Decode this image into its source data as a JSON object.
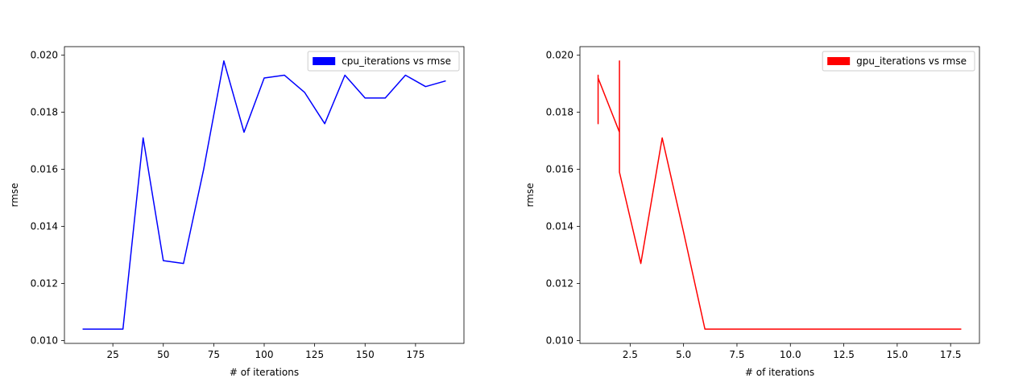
{
  "chart_data": [
    {
      "type": "line",
      "xlabel": "# of iterations",
      "ylabel": "rmse",
      "xlim": [
        1,
        199
      ],
      "ylim": [
        0.0099,
        0.0203
      ],
      "xticks": [
        25,
        50,
        75,
        100,
        125,
        150,
        175
      ],
      "xtick_labels": [
        "25",
        "50",
        "75",
        "100",
        "125",
        "150",
        "175"
      ],
      "yticks": [
        0.01,
        0.012,
        0.014,
        0.016,
        0.018,
        0.02
      ],
      "ytick_labels": [
        "0.010",
        "0.012",
        "0.014",
        "0.016",
        "0.018",
        "0.020"
      ],
      "grid": false,
      "legend": "top-right",
      "series": [
        {
          "name": "cpu_iterations vs rmse",
          "color": "#0000ff",
          "x": [
            10,
            20,
            30,
            40,
            50,
            60,
            70,
            80,
            90,
            100,
            110,
            120,
            130,
            140,
            150,
            160,
            170,
            180,
            190
          ],
          "y": [
            0.0104,
            0.0104,
            0.0104,
            0.0171,
            0.0128,
            0.0127,
            0.016,
            0.0198,
            0.0173,
            0.0192,
            0.0193,
            0.0187,
            0.0176,
            0.0193,
            0.0185,
            0.0185,
            0.0193,
            0.0189,
            0.0191
          ]
        }
      ]
    },
    {
      "type": "line",
      "xlabel": "# of iterations",
      "ylabel": "rmse",
      "xlim": [
        0.15,
        18.85
      ],
      "ylim": [
        0.0099,
        0.0203
      ],
      "xticks": [
        2.5,
        5.0,
        7.5,
        10.0,
        12.5,
        15.0,
        17.5
      ],
      "xtick_labels": [
        "2.5",
        "5.0",
        "7.5",
        "10.0",
        "12.5",
        "15.0",
        "17.5"
      ],
      "yticks": [
        0.01,
        0.012,
        0.014,
        0.016,
        0.018,
        0.02
      ],
      "ytick_labels": [
        "0.010",
        "0.012",
        "0.014",
        "0.016",
        "0.018",
        "0.020"
      ],
      "grid": false,
      "legend": "top-right",
      "series": [
        {
          "name": "gpu_iterations vs rmse",
          "color": "#ff0000",
          "x": [
            1,
            1,
            1,
            1,
            2,
            2,
            2,
            3,
            4,
            5,
            6,
            7,
            8,
            9,
            10,
            11,
            12,
            13,
            14,
            15,
            16,
            17,
            18
          ],
          "y": [
            0.0176,
            0.0193,
            0.0176,
            0.0192,
            0.0173,
            0.0198,
            0.0159,
            0.0127,
            0.0171,
            0.0138,
            0.0104,
            0.0104,
            0.0104,
            0.0104,
            0.0104,
            0.0104,
            0.0104,
            0.0104,
            0.0104,
            0.0104,
            0.0104,
            0.0104,
            0.0104
          ]
        }
      ]
    }
  ]
}
